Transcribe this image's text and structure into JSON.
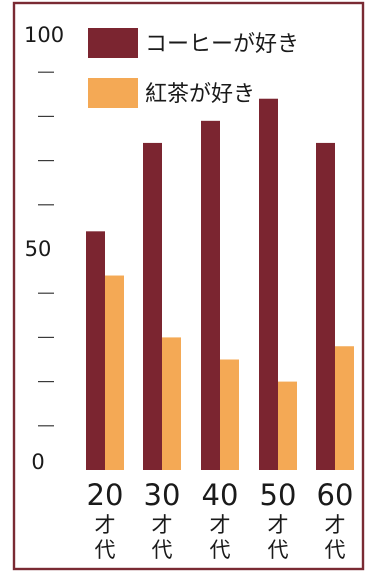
{
  "chart_data": {
    "type": "bar",
    "categories": [
      "20",
      "30",
      "40",
      "50",
      "60"
    ],
    "category_suffix": [
      "才",
      "代"
    ],
    "series": [
      {
        "name": "コーヒーが好き",
        "values": [
          54,
          74,
          79,
          84,
          74
        ],
        "color": "#7b2530"
      },
      {
        "name": "紅茶が好き",
        "values": [
          44,
          30,
          25,
          20,
          28
        ],
        "color": "#f4a955"
      }
    ],
    "ylim": [
      0,
      100
    ],
    "ytick_labels": [
      "0",
      "50",
      "100"
    ],
    "minor_ticks": [
      10,
      20,
      30,
      40,
      60,
      70,
      80,
      90
    ],
    "legend_position": "top-right",
    "xlabel": "",
    "ylabel": "",
    "title": ""
  }
}
